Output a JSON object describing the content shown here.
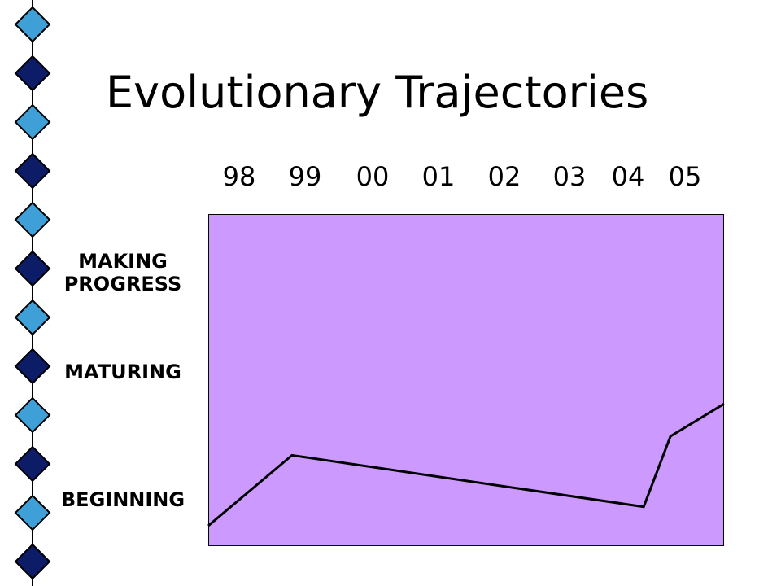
{
  "title": "Evolutionary Trajectories",
  "chart_data": {
    "type": "line",
    "title": "Evolutionary Trajectories",
    "x_tick_labels": [
      "98",
      "99",
      "00",
      "01",
      "02",
      "03",
      "04",
      "05"
    ],
    "y_levels": [
      "BEGINNING",
      "MAKING\nPROGRESS",
      "MATURING"
    ],
    "y_level_values": [
      1,
      2,
      3
    ],
    "ylim": [
      0.85,
      3.3
    ],
    "x": [
      97.5,
      98.75,
      104.0,
      104.4,
      105.2
    ],
    "y": [
      1.0,
      1.52,
      1.14,
      1.66,
      1.9
    ],
    "xlim": [
      97.5,
      105.2
    ],
    "grid": false,
    "legend": "none",
    "colors": {
      "plot_background": "#cc99ff",
      "line": "#000000",
      "diamond_light": "#3fa0d7",
      "diamond_dark": "#0c1c66"
    }
  }
}
